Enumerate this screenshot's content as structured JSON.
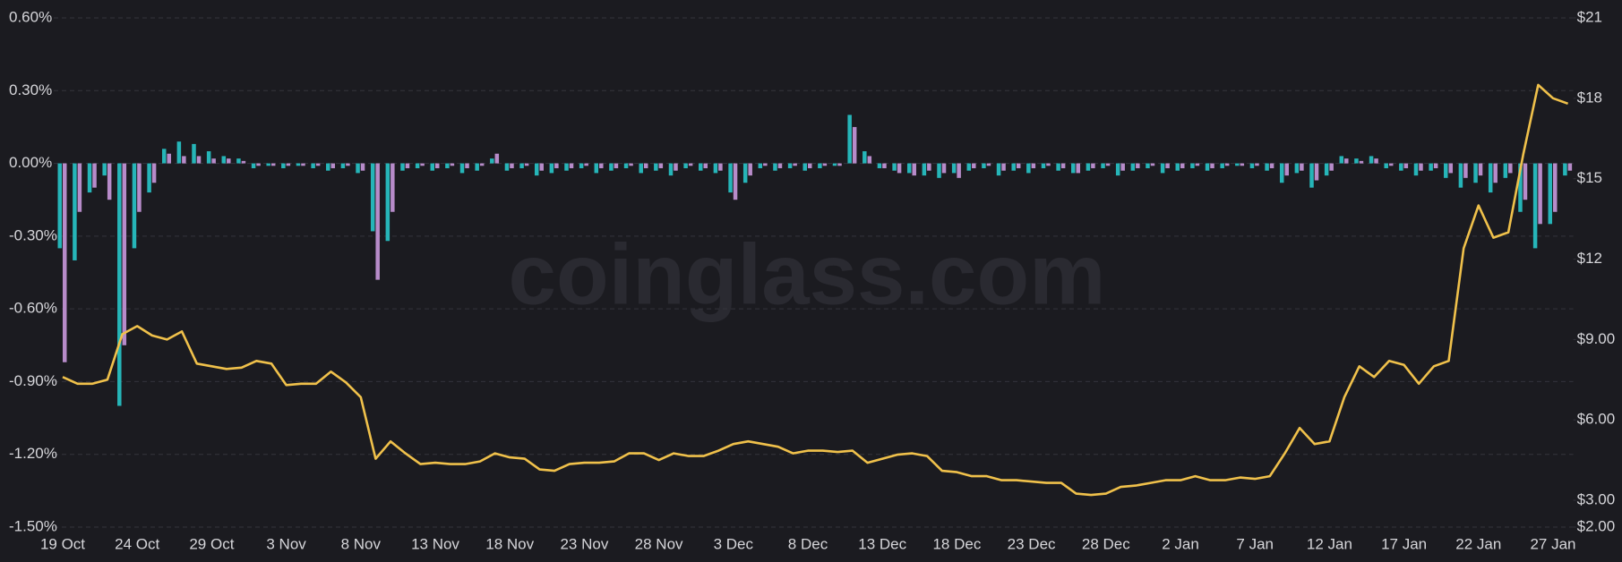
{
  "chart_data": {
    "type": "bar-line",
    "watermark": "coinglass.com",
    "categories": [
      "19 Oct",
      null,
      null,
      null,
      null,
      "24 Oct",
      null,
      null,
      null,
      null,
      "29 Oct",
      null,
      null,
      null,
      null,
      "3 Nov",
      null,
      null,
      null,
      null,
      "8 Nov",
      null,
      null,
      null,
      null,
      "13 Nov",
      null,
      null,
      null,
      null,
      "18 Nov",
      null,
      null,
      null,
      null,
      "23 Nov",
      null,
      null,
      null,
      null,
      "28 Nov",
      null,
      null,
      null,
      null,
      "3 Dec",
      null,
      null,
      null,
      null,
      "8 Dec",
      null,
      null,
      null,
      null,
      "13 Dec",
      null,
      null,
      null,
      null,
      "18 Dec",
      null,
      null,
      null,
      null,
      "23 Dec",
      null,
      null,
      null,
      null,
      "28 Dec",
      null,
      null,
      null,
      null,
      "2 Jan",
      null,
      null,
      null,
      null,
      "7 Jan",
      null,
      null,
      null,
      null,
      "12 Jan",
      null,
      null,
      null,
      null,
      "17 Jan",
      null,
      null,
      null,
      null,
      "22 Jan",
      null,
      null,
      null,
      null,
      "27 Jan",
      null
    ],
    "series": [
      {
        "type": "bar",
        "color": "#26b5b8",
        "values": [
          -0.35,
          -0.4,
          -0.12,
          -0.05,
          -1.0,
          -0.35,
          -0.12,
          0.06,
          0.09,
          0.08,
          0.05,
          0.03,
          0.02,
          -0.02,
          -0.01,
          -0.02,
          -0.01,
          -0.02,
          -0.03,
          -0.02,
          -0.04,
          -0.28,
          -0.32,
          -0.03,
          -0.02,
          -0.03,
          -0.02,
          -0.04,
          -0.03,
          0.02,
          -0.03,
          -0.02,
          -0.05,
          -0.04,
          -0.03,
          -0.02,
          -0.04,
          -0.03,
          -0.02,
          -0.04,
          -0.03,
          -0.05,
          -0.02,
          -0.03,
          -0.04,
          -0.12,
          -0.08,
          -0.02,
          -0.03,
          -0.02,
          -0.03,
          -0.02,
          -0.01,
          0.2,
          0.05,
          -0.02,
          -0.03,
          -0.04,
          -0.05,
          -0.06,
          -0.04,
          -0.03,
          -0.02,
          -0.05,
          -0.03,
          -0.04,
          -0.02,
          -0.03,
          -0.04,
          -0.03,
          -0.02,
          -0.05,
          -0.03,
          -0.02,
          -0.04,
          -0.03,
          -0.02,
          -0.03,
          -0.02,
          -0.01,
          -0.02,
          -0.03,
          -0.08,
          -0.04,
          -0.1,
          -0.05,
          0.03,
          0.02,
          0.03,
          -0.02,
          -0.03,
          -0.05,
          -0.03,
          -0.06,
          -0.1,
          -0.08,
          -0.12,
          -0.06,
          -0.2,
          -0.35,
          -0.25,
          -0.05
        ]
      },
      {
        "type": "bar",
        "color": "#b78bc9",
        "values": [
          -0.82,
          -0.2,
          -0.1,
          -0.15,
          -0.75,
          -0.2,
          -0.08,
          0.04,
          0.03,
          0.03,
          0.02,
          0.02,
          0.01,
          -0.01,
          -0.01,
          -0.01,
          -0.01,
          -0.01,
          -0.02,
          -0.01,
          -0.03,
          -0.48,
          -0.2,
          -0.02,
          -0.01,
          -0.02,
          -0.01,
          -0.02,
          -0.01,
          0.04,
          -0.02,
          -0.01,
          -0.03,
          -0.02,
          -0.02,
          -0.01,
          -0.02,
          -0.02,
          -0.01,
          -0.02,
          -0.02,
          -0.03,
          -0.01,
          -0.02,
          -0.03,
          -0.15,
          -0.05,
          -0.01,
          -0.02,
          -0.01,
          -0.02,
          -0.01,
          -0.01,
          0.15,
          0.03,
          -0.02,
          -0.04,
          -0.05,
          -0.03,
          -0.04,
          -0.06,
          -0.02,
          -0.01,
          -0.03,
          -0.02,
          -0.02,
          -0.01,
          -0.02,
          -0.04,
          -0.02,
          -0.01,
          -0.03,
          -0.02,
          -0.01,
          -0.02,
          -0.02,
          -0.01,
          -0.02,
          -0.01,
          -0.01,
          -0.01,
          -0.02,
          -0.05,
          -0.03,
          -0.07,
          -0.03,
          0.02,
          0.01,
          0.02,
          -0.01,
          -0.02,
          -0.03,
          -0.02,
          -0.04,
          -0.06,
          -0.05,
          -0.08,
          -0.04,
          -0.15,
          -0.25,
          -0.2,
          -0.03
        ]
      },
      {
        "type": "line",
        "axis": "y2",
        "color": "#f0c14b",
        "values": [
          7.6,
          7.35,
          7.35,
          7.5,
          9.2,
          9.5,
          9.15,
          9.0,
          9.3,
          8.1,
          8.0,
          7.9,
          7.95,
          8.2,
          8.1,
          7.3,
          7.35,
          7.35,
          7.8,
          7.4,
          6.85,
          4.55,
          5.2,
          4.75,
          4.35,
          4.4,
          4.35,
          4.35,
          4.45,
          4.75,
          4.6,
          4.55,
          4.15,
          4.1,
          4.35,
          4.4,
          4.4,
          4.45,
          4.75,
          4.75,
          4.5,
          4.75,
          4.65,
          4.65,
          4.85,
          5.1,
          5.2,
          5.1,
          5.0,
          4.75,
          4.85,
          4.85,
          4.8,
          4.85,
          4.4,
          4.55,
          4.7,
          4.75,
          4.65,
          4.1,
          4.05,
          3.9,
          3.9,
          3.75,
          3.75,
          3.7,
          3.65,
          3.65,
          3.25,
          3.2,
          3.25,
          3.5,
          3.55,
          3.65,
          3.75,
          3.75,
          3.9,
          3.75,
          3.75,
          3.85,
          3.8,
          3.9,
          4.75,
          5.7,
          5.1,
          5.2,
          6.85,
          8.0,
          7.6,
          8.2,
          8.05,
          7.35,
          8.0,
          8.2,
          12.4,
          14.0,
          12.8,
          13.0,
          15.9,
          18.5,
          18.0,
          17.8
        ]
      }
    ],
    "ylim": [
      -1.5,
      0.6
    ],
    "yticks": [
      {
        "value": 0.6,
        "label": "0.60%"
      },
      {
        "value": 0.3,
        "label": "0.30%"
      },
      {
        "value": 0,
        "label": "0.00%"
      },
      {
        "value": -0.3,
        "label": "-0.30%"
      },
      {
        "value": -0.6,
        "label": "-0.60%"
      },
      {
        "value": -0.9,
        "label": "-0.90%"
      },
      {
        "value": -1.2,
        "label": "-1.20%"
      },
      {
        "value": -1.5,
        "label": "-1.50%"
      }
    ],
    "y2lim": [
      2,
      21
    ],
    "y2ticks": [
      {
        "value": 21,
        "label": "$21"
      },
      {
        "value": 18,
        "label": "$18"
      },
      {
        "value": 15,
        "label": "$15"
      },
      {
        "value": 12,
        "label": "$12"
      },
      {
        "value": 9,
        "label": "$9.00"
      },
      {
        "value": 6,
        "label": "$6.00"
      },
      {
        "value": 3,
        "label": "$3.00"
      },
      {
        "value": 2,
        "label": "$2.00"
      }
    ],
    "grid": true
  }
}
